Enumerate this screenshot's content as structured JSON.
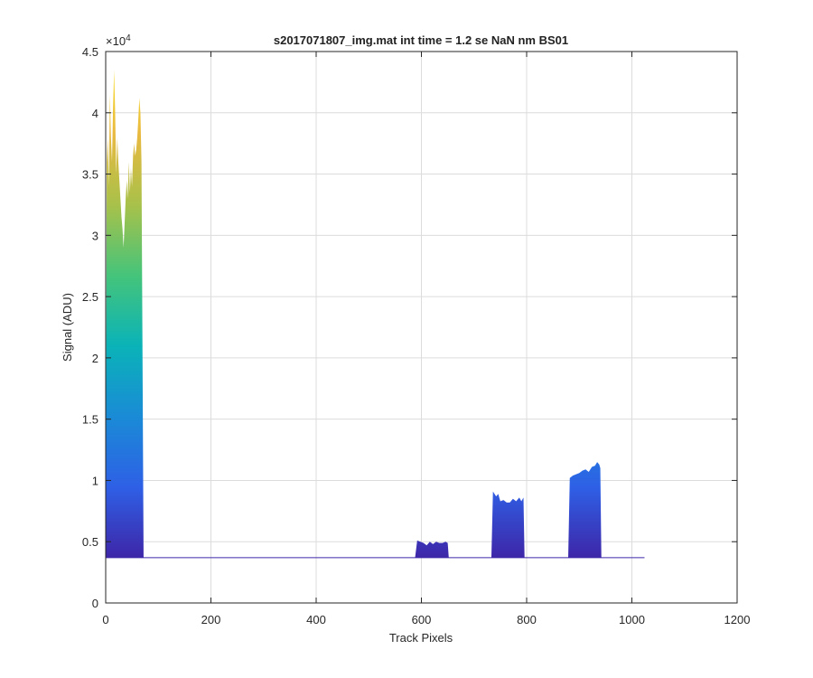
{
  "chart_data": {
    "type": "area",
    "title": "s2017071807_img.mat int time = 1.2 se  NaN nm BS01",
    "xlabel": "Track Pixels",
    "ylabel": "Signal (ADU)",
    "xlim": [
      0,
      1200
    ],
    "ylim": [
      0,
      45000
    ],
    "x_ticks": [
      0,
      200,
      400,
      600,
      800,
      1000,
      1200
    ],
    "x_tick_labels": [
      "0",
      "200",
      "400",
      "600",
      "800",
      "1000",
      "1200"
    ],
    "y_ticks": [
      0,
      5000,
      10000,
      15000,
      20000,
      25000,
      30000,
      35000,
      40000,
      45000
    ],
    "y_tick_labels": [
      "0",
      "0.5",
      "1",
      "1.5",
      "2",
      "2.5",
      "3",
      "3.5",
      "4",
      "4.5"
    ],
    "y_exponent_label": "×10",
    "y_exponent_power": "4",
    "grid": true,
    "baseline": 3700,
    "x_end": 1024,
    "colormap": [
      "#3e26a8",
      "#2e60e6",
      "#1a8bd6",
      "#0ab3b8",
      "#45c47a",
      "#a8c14a",
      "#e9b940",
      "#f9e026"
    ],
    "peaks": [
      {
        "x": [
          0,
          2,
          4,
          6,
          8,
          10,
          12,
          14,
          16,
          18,
          20,
          22,
          24,
          26,
          28,
          30,
          32,
          34,
          36,
          38,
          40,
          42,
          44,
          46,
          48,
          50,
          52,
          54,
          56,
          58,
          60,
          62,
          64,
          66,
          68,
          70,
          72
        ],
        "y": [
          3700,
          36000,
          38000,
          34000,
          41500,
          38000,
          36000,
          40500,
          43500,
          40000,
          35000,
          38000,
          36000,
          34500,
          33000,
          31500,
          30500,
          29000,
          31000,
          33000,
          34500,
          33000,
          36000,
          33500,
          35500,
          34000,
          36500,
          37500,
          36500,
          37000,
          38000,
          39500,
          41200,
          40000,
          36000,
          20000,
          3700
        ]
      },
      {
        "x": [
          588,
          592,
          598,
          604,
          610,
          616,
          622,
          628,
          634,
          640,
          646,
          650,
          652
        ],
        "y": [
          3700,
          5100,
          5000,
          4900,
          4700,
          5000,
          4800,
          5000,
          4900,
          4900,
          5000,
          4900,
          3700
        ]
      },
      {
        "x": [
          733,
          736,
          742,
          746,
          750,
          756,
          762,
          768,
          774,
          780,
          786,
          790,
          794,
          796
        ],
        "y": [
          3700,
          9100,
          8700,
          8900,
          8300,
          8400,
          8200,
          8200,
          8500,
          8300,
          8600,
          8300,
          8600,
          3700
        ]
      },
      {
        "x": [
          879,
          882,
          888,
          894,
          900,
          906,
          912,
          918,
          924,
          930,
          934,
          938,
          940,
          942
        ],
        "y": [
          3700,
          10200,
          10400,
          10500,
          10600,
          10800,
          10900,
          10700,
          11100,
          11200,
          11500,
          11300,
          11000,
          3700
        ]
      }
    ]
  }
}
